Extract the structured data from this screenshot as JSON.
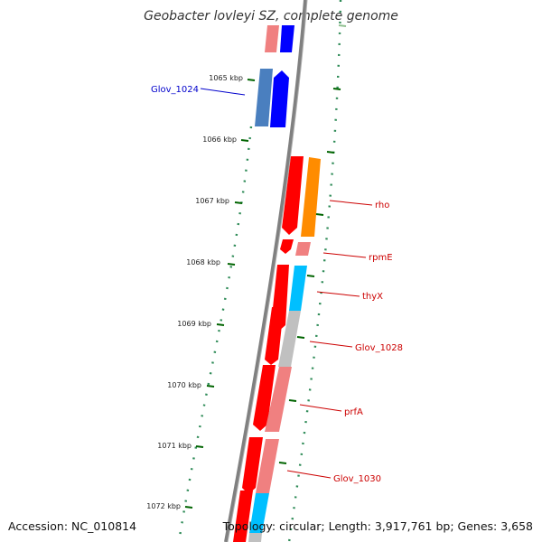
{
  "title": "Geobacter lovleyi SZ, complete genome",
  "footer": {
    "accession": "Accession: NC_010814",
    "topology": "Topology: circular; Length: 3,917,761 bp; Genes: 3,658"
  },
  "colors": {
    "forward_cds": "#0000ff",
    "forward_cds_light": "#4a7fbf",
    "reverse_cds": "#ff0000",
    "reverse_cds_light": "#f08080",
    "label_forward": "#0000cc",
    "label_reverse": "#cc0000",
    "tick_mark": "#006400",
    "backbone": "#808080",
    "orange_feature": "#ff8c00",
    "cyan_feature": "#00bfff",
    "grey_feature": "#c0c0c0"
  },
  "ticks": [
    {
      "label": "1065 kbp"
    },
    {
      "label": "1066 kbp"
    },
    {
      "label": "1067 kbp"
    },
    {
      "label": "1068 kbp"
    },
    {
      "label": "1069 kbp"
    },
    {
      "label": "1070 kbp"
    },
    {
      "label": "1071 kbp"
    },
    {
      "label": "1072 kbp"
    }
  ],
  "gene_labels": [
    {
      "name": "Glov_1024",
      "strand": "forward"
    },
    {
      "name": "rho",
      "strand": "reverse"
    },
    {
      "name": "rpmE",
      "strand": "reverse"
    },
    {
      "name": "thyX",
      "strand": "reverse"
    },
    {
      "name": "Glov_1028",
      "strand": "reverse"
    },
    {
      "name": "prfA",
      "strand": "reverse"
    },
    {
      "name": "Glov_1030",
      "strand": "reverse"
    }
  ]
}
